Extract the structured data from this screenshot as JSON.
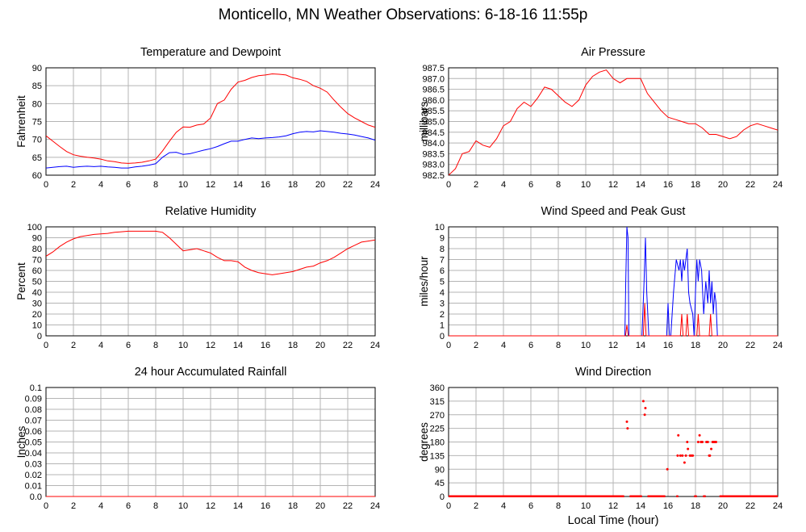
{
  "page": {
    "title": "Monticello, MN Weather Observations: 6-18-16 11:55p"
  },
  "colors": {
    "red": "#ff0000",
    "blue": "#0000ff",
    "grid": "#b4b4b4",
    "axis": "#000000"
  },
  "chart_data": [
    {
      "id": "temp",
      "type": "line",
      "title": "Temperature and Dewpoint",
      "xlabel": "",
      "ylabel": "Fahrenheit",
      "xlim": [
        0,
        24
      ],
      "ylim": [
        60,
        90
      ],
      "xticks": [
        0,
        2,
        4,
        6,
        8,
        10,
        12,
        14,
        16,
        18,
        20,
        22,
        24
      ],
      "yticks": [
        "60",
        "65",
        "70",
        "75",
        "80",
        "85",
        "90"
      ],
      "grid": true,
      "x": [
        0,
        0.5,
        1,
        1.5,
        2,
        2.5,
        3,
        3.5,
        4,
        4.5,
        5,
        5.5,
        6,
        6.5,
        7,
        7.5,
        8,
        8.5,
        9,
        9.5,
        10,
        10.5,
        11,
        11.5,
        12,
        12.5,
        13,
        13.5,
        14,
        14.5,
        15,
        15.5,
        16,
        16.5,
        17,
        17.5,
        18,
        18.5,
        19,
        19.5,
        20,
        20.5,
        21,
        21.5,
        22,
        22.5,
        23,
        23.5,
        24
      ],
      "series": [
        {
          "color": "#ff0000",
          "values": [
            71,
            69.5,
            68,
            66.6,
            65.7,
            65.3,
            65,
            64.8,
            64.5,
            64,
            63.8,
            63.4,
            63.3,
            63.4,
            63.6,
            64,
            64.5,
            66.8,
            69.5,
            72,
            73.5,
            73.4,
            74,
            74.3,
            76,
            80,
            81,
            84,
            86,
            86.5,
            87.3,
            87.8,
            88,
            88.3,
            88.2,
            88,
            87.2,
            86.8,
            86.2,
            85,
            84.3,
            83.2,
            81,
            79,
            77.2,
            76,
            75,
            74,
            73.4
          ]
        },
        {
          "color": "#0000ff",
          "values": [
            62,
            62.2,
            62.4,
            62.5,
            62.2,
            62.4,
            62.5,
            62.4,
            62.5,
            62.3,
            62.2,
            62,
            62,
            62.3,
            62.5,
            62.8,
            63.2,
            65,
            66.3,
            66.4,
            65.8,
            66,
            66.5,
            67,
            67.4,
            68,
            68.8,
            69.5,
            69.5,
            70,
            70.4,
            70.2,
            70.4,
            70.5,
            70.7,
            71,
            71.6,
            72,
            72.2,
            72.1,
            72.4,
            72.2,
            72,
            71.7,
            71.5,
            71.2,
            70.8,
            70.4,
            69.8
          ]
        }
      ]
    },
    {
      "id": "pressure",
      "type": "line",
      "title": "Air Pressure",
      "xlabel": "",
      "ylabel": "millibars",
      "xlim": [
        0,
        24
      ],
      "ylim": [
        982.5,
        987.5
      ],
      "xticks": [
        0,
        2,
        4,
        6,
        8,
        10,
        12,
        14,
        16,
        18,
        20,
        22,
        24
      ],
      "yticks": [
        "982.5",
        "983.0",
        "983.5",
        "984.0",
        "984.5",
        "985.0",
        "985.5",
        "986.0",
        "986.5",
        "987.0",
        "987.5"
      ],
      "grid": true,
      "x": [
        0,
        0.5,
        1,
        1.5,
        2,
        2.5,
        3,
        3.5,
        4,
        4.5,
        5,
        5.5,
        6,
        6.5,
        7,
        7.5,
        8,
        8.5,
        9,
        9.5,
        10,
        10.5,
        11,
        11.5,
        12,
        12.5,
        13,
        13.5,
        14,
        14.5,
        15,
        15.5,
        16,
        16.5,
        17,
        17.5,
        18,
        18.5,
        19,
        19.5,
        20,
        20.5,
        21,
        21.5,
        22,
        22.5,
        23,
        23.5,
        24
      ],
      "series": [
        {
          "color": "#ff0000",
          "values": [
            982.5,
            982.8,
            983.5,
            983.6,
            984.1,
            983.9,
            983.8,
            984.2,
            984.8,
            985.0,
            985.6,
            985.9,
            985.7,
            986.1,
            986.6,
            986.5,
            986.2,
            985.9,
            985.7,
            986.0,
            986.7,
            987.1,
            987.3,
            987.4,
            987.0,
            986.8,
            987.0,
            987.0,
            987.0,
            986.3,
            985.9,
            985.5,
            985.2,
            985.1,
            985.0,
            984.9,
            984.9,
            984.7,
            984.4,
            984.4,
            984.3,
            984.2,
            984.3,
            984.6,
            984.8,
            984.9,
            984.8,
            984.7,
            984.6
          ]
        }
      ]
    },
    {
      "id": "humidity",
      "type": "line",
      "title": "Relative Humidity",
      "xlabel": "",
      "ylabel": "Percent",
      "xlim": [
        0,
        24
      ],
      "ylim": [
        0,
        100
      ],
      "xticks": [
        0,
        2,
        4,
        6,
        8,
        10,
        12,
        14,
        16,
        18,
        20,
        22,
        24
      ],
      "yticks": [
        "0",
        "10",
        "20",
        "30",
        "40",
        "50",
        "60",
        "70",
        "80",
        "90",
        "100"
      ],
      "grid": true,
      "x": [
        0,
        0.5,
        1,
        1.5,
        2,
        2.5,
        3,
        3.5,
        4,
        4.5,
        5,
        5.5,
        6,
        6.5,
        7,
        7.5,
        8,
        8.5,
        9,
        9.5,
        10,
        10.5,
        11,
        11.5,
        12,
        12.5,
        13,
        13.5,
        14,
        14.5,
        15,
        15.5,
        16,
        16.5,
        17,
        17.5,
        18,
        18.5,
        19,
        19.5,
        20,
        20.5,
        21,
        21.5,
        22,
        22.5,
        23,
        23.5,
        24
      ],
      "series": [
        {
          "color": "#ff0000",
          "values": [
            73,
            77,
            82,
            86,
            89,
            91,
            92,
            93,
            93.5,
            94,
            95,
            95.5,
            96,
            96,
            96,
            96,
            96,
            95,
            90,
            84,
            78,
            79,
            80,
            78,
            76,
            72,
            69,
            69,
            68,
            63,
            60,
            58,
            57,
            56,
            57,
            58,
            59,
            61,
            63,
            64,
            67,
            69,
            72,
            76,
            80,
            83,
            86,
            87,
            88
          ]
        }
      ]
    },
    {
      "id": "wind",
      "type": "line",
      "title": "Wind Speed and Peak Gust",
      "xlabel": "",
      "ylabel": "miles/hour",
      "xlim": [
        0,
        24
      ],
      "ylim": [
        0,
        10
      ],
      "xticks": [
        0,
        2,
        4,
        6,
        8,
        10,
        12,
        14,
        16,
        18,
        20,
        22,
        24
      ],
      "yticks": [
        "0",
        "1",
        "2",
        "3",
        "4",
        "5",
        "6",
        "7",
        "8",
        "9",
        "10"
      ],
      "grid": true,
      "series": [
        {
          "color": "#0000ff",
          "x": [
            0,
            12.85,
            12.92,
            13.0,
            13.08,
            13.15,
            14.1,
            14.25,
            14.35,
            14.45,
            14.6,
            15.9,
            16.0,
            16.1,
            16.2,
            16.4,
            16.6,
            16.8,
            16.9,
            17.0,
            17.1,
            17.2,
            17.4,
            17.5,
            17.6,
            17.8,
            17.9,
            18.0,
            18.1,
            18.2,
            18.3,
            18.45,
            18.6,
            18.75,
            18.9,
            19.0,
            19.1,
            19.2,
            19.3,
            19.4,
            19.5,
            19.6,
            24
          ],
          "values": [
            0,
            0,
            5,
            10,
            9,
            0,
            0,
            5,
            9,
            4,
            0,
            0,
            3,
            0,
            0,
            4,
            7,
            6,
            7,
            5,
            7,
            6,
            8,
            4,
            3,
            2,
            0,
            4,
            7,
            5,
            7,
            6,
            2,
            5,
            3,
            6,
            3,
            5,
            2,
            4,
            3,
            0,
            0
          ]
        },
        {
          "color": "#ff0000",
          "x": [
            0,
            12.9,
            13.0,
            13.1,
            14.2,
            14.3,
            14.4,
            16.9,
            17.0,
            17.1,
            17.3,
            17.4,
            17.5,
            18.1,
            18.2,
            18.3,
            19.0,
            19.1,
            19.2,
            24
          ],
          "values": [
            0,
            0,
            1,
            0,
            0,
            3,
            0,
            0,
            2,
            0,
            0,
            2,
            0,
            0,
            2,
            0,
            0,
            2,
            0,
            0
          ]
        }
      ]
    },
    {
      "id": "rain",
      "type": "line",
      "title": "24 hour Accumulated Rainfall",
      "xlabel": "",
      "ylabel": "Inches",
      "xlim": [
        0,
        24
      ],
      "ylim": [
        0,
        0.1
      ],
      "xticks": [
        0,
        2,
        4,
        6,
        8,
        10,
        12,
        14,
        16,
        18,
        20,
        22,
        24
      ],
      "yticks": [
        "0.0",
        "0.01",
        "0.02",
        "0.03",
        "0.04",
        "0.05",
        "0.06",
        "0.07",
        "0.08",
        "0.09",
        "0.1"
      ],
      "grid": true,
      "series": [
        {
          "color": "#ff0000",
          "x": [
            0,
            24
          ],
          "values": [
            0,
            0
          ]
        }
      ]
    },
    {
      "id": "direction",
      "type": "scatter",
      "title": "Wind Direction",
      "xlabel": "Local Time (hour)",
      "ylabel": "degrees",
      "xlim": [
        0,
        24
      ],
      "ylim": [
        0,
        360
      ],
      "xticks": [
        0,
        2,
        4,
        6,
        8,
        10,
        12,
        14,
        16,
        18,
        20,
        22,
        24
      ],
      "yticks": [
        "0",
        "45",
        "90",
        "135",
        "180",
        "225",
        "270",
        "315",
        "360"
      ],
      "grid": true,
      "baseline": {
        "value": 0,
        "segments": [
          [
            0,
            12.8
          ],
          [
            13.2,
            14.1
          ],
          [
            14.5,
            15.8
          ],
          [
            16.6,
            16.75
          ],
          [
            17.9,
            18.1
          ],
          [
            18.55,
            18.75
          ],
          [
            19.75,
            24
          ]
        ]
      },
      "series": [
        {
          "color": "#ff0000",
          "x": [
            13.0,
            13.05,
            14.2,
            14.3,
            14.35,
            15.95,
            16.7,
            16.75,
            16.9,
            17.05,
            17.2,
            17.3,
            17.4,
            17.45,
            17.6,
            17.7,
            17.8,
            18.2,
            18.3,
            18.4,
            18.5,
            18.8,
            18.9,
            19.0,
            19.05,
            19.15,
            19.25,
            19.3,
            19.4,
            19.5
          ],
          "values": [
            247,
            225,
            315,
            270,
            292,
            90,
            135,
            202,
            135,
            135,
            112,
            135,
            180,
            157,
            135,
            135,
            135,
            180,
            202,
            180,
            180,
            180,
            180,
            135,
            135,
            157,
            180,
            180,
            180,
            180
          ]
        }
      ]
    }
  ]
}
